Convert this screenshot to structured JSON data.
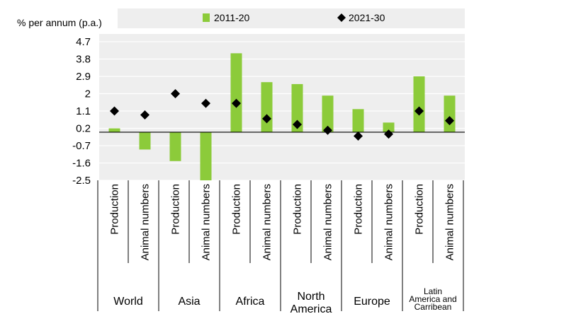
{
  "chart_data": {
    "type": "bar",
    "ylabel": "% per annum (p.a.)",
    "y_ticks": [
      "4.7",
      "3.8",
      "2.9",
      "2",
      "1.1",
      "0.2",
      "-0.7",
      "-1.6",
      "-2.5"
    ],
    "ylim": [
      -2.5,
      4.7
    ],
    "grid": true,
    "legend_position": "top",
    "colors": {
      "bar": "#8CCB3A",
      "marker": "#000000",
      "panel": "#EEEEEE",
      "gridline": "#FFFFFF"
    },
    "categories": [
      {
        "region": "World",
        "measure": "Production"
      },
      {
        "region": "World",
        "measure": "Animal numbers"
      },
      {
        "region": "Asia",
        "measure": "Production"
      },
      {
        "region": "Asia",
        "measure": "Animal numbers"
      },
      {
        "region": "Africa",
        "measure": "Production"
      },
      {
        "region": "Africa",
        "measure": "Animal numbers"
      },
      {
        "region": "North America",
        "measure": "Production"
      },
      {
        "region": "North America",
        "measure": "Animal numbers"
      },
      {
        "region": "Europe",
        "measure": "Production"
      },
      {
        "region": "Europe",
        "measure": "Animal numbers"
      },
      {
        "region": "Latin America and Carribean",
        "measure": "Production"
      },
      {
        "region": "Latin America and Carribean",
        "measure": "Animal numbers"
      }
    ],
    "group_labels": [
      {
        "lines": [
          "World"
        ],
        "size": "large"
      },
      {
        "lines": [
          "Asia"
        ],
        "size": "large"
      },
      {
        "lines": [
          "Africa"
        ],
        "size": "large"
      },
      {
        "lines": [
          "North",
          "America"
        ],
        "size": "large"
      },
      {
        "lines": [
          "Europe"
        ],
        "size": "large"
      },
      {
        "lines": [
          "Latin",
          "America and",
          "Carribean"
        ],
        "size": "small"
      }
    ],
    "series": [
      {
        "name": "2011-20",
        "kind": "bar",
        "values": [
          0.2,
          -0.9,
          -1.5,
          -2.5,
          4.1,
          2.6,
          2.5,
          1.9,
          1.2,
          0.5,
          2.9,
          1.9
        ]
      },
      {
        "name": "2021-30",
        "kind": "marker",
        "values": [
          1.1,
          0.9,
          2.0,
          1.5,
          1.5,
          0.7,
          0.4,
          0.1,
          -0.2,
          -0.1,
          1.1,
          0.6
        ]
      }
    ]
  }
}
